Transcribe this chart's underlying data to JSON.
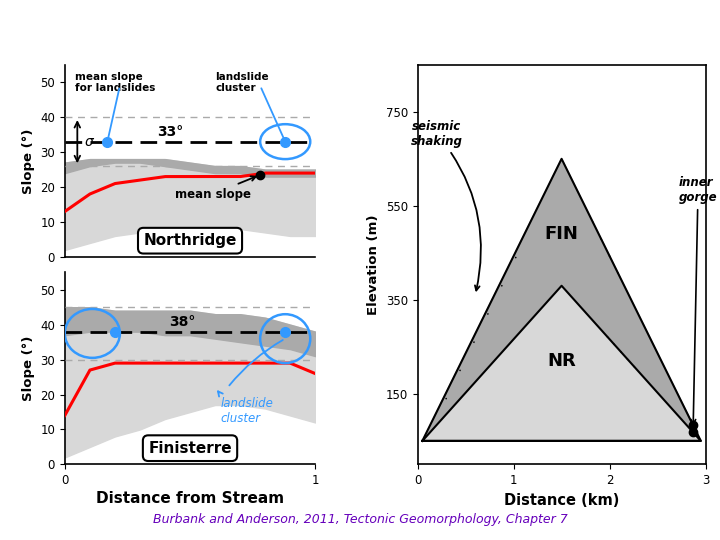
{
  "fig_width": 7.2,
  "fig_height": 5.4,
  "bg_color": "#ffffff",
  "caption": "Burbank and Anderson, 2011, Tectonic Geomorphology, Chapter 7",
  "caption_color": "#6600bb",
  "nr_up_outer": [
    27,
    28,
    28,
    28,
    28,
    27,
    26,
    26,
    25,
    25,
    25
  ],
  "nr_up_inner": [
    24,
    26,
    27,
    27,
    26,
    25,
    24,
    24,
    23,
    23,
    23
  ],
  "nr_red": [
    13,
    18,
    21,
    22,
    23,
    23,
    23,
    23,
    24,
    24,
    24
  ],
  "nr_lo_outer": [
    2,
    4,
    6,
    7,
    8,
    8,
    8,
    8,
    7,
    6,
    6
  ],
  "nr_mean_line": 33,
  "nr_sigma_upper": 40,
  "nr_sigma_lower": 26,
  "nr_dashed_upper": 40,
  "fi_up_outer": [
    45,
    45,
    44,
    44,
    44,
    44,
    43,
    43,
    42,
    40,
    38
  ],
  "fi_up_inner": [
    37,
    38,
    38,
    38,
    37,
    37,
    36,
    35,
    34,
    33,
    31
  ],
  "fi_red": [
    14,
    27,
    29,
    29,
    29,
    29,
    29,
    29,
    29,
    29,
    26
  ],
  "fi_lo_outer": [
    2,
    5,
    8,
    10,
    13,
    15,
    17,
    17,
    16,
    14,
    12
  ],
  "fi_mean_line": 38,
  "fi_sigma_upper": 45,
  "fi_sigma_lower": 30,
  "fi_dashed_upper": 45,
  "elev_xlabel": "Distance (km)",
  "elev_ylabel": "Elevation (m)"
}
